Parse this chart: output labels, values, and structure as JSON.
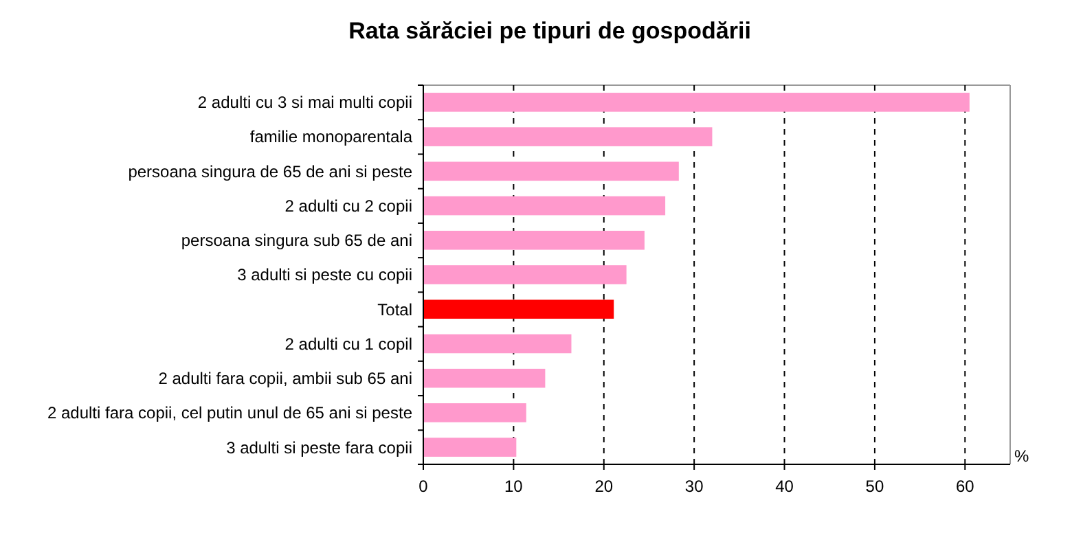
{
  "chart_data": {
    "type": "bar",
    "orientation": "horizontal",
    "title": "Rata sărăciei pe tipuri de gospodării",
    "xlabel": "%",
    "categories": [
      "2 adulti cu 3 si mai multi copii",
      "familie monoparentala",
      "persoana singura de 65 de ani si peste",
      "2 adulti cu 2 copii",
      "persoana singura sub 65 de ani",
      "3 adulti si peste cu copii",
      "Total",
      "2 adulti cu 1 copil",
      "2 adulti fara copii, ambii sub 65 ani",
      "2 adulti fara copii, cel putin unul de 65 ani si peste",
      "3 adulti si peste fara copii"
    ],
    "values": [
      60.5,
      32.0,
      28.3,
      26.8,
      24.5,
      22.5,
      21.1,
      16.4,
      13.5,
      11.4,
      10.3
    ],
    "colors": [
      "#ff99cc",
      "#ff99cc",
      "#ff99cc",
      "#ff99cc",
      "#ff99cc",
      "#ff99cc",
      "#ff0000",
      "#ff99cc",
      "#ff99cc",
      "#ff99cc",
      "#ff99cc"
    ],
    "xlim": [
      0,
      65
    ],
    "xticks": [
      0,
      10,
      20,
      30,
      40,
      50,
      60
    ],
    "grid": "x"
  }
}
